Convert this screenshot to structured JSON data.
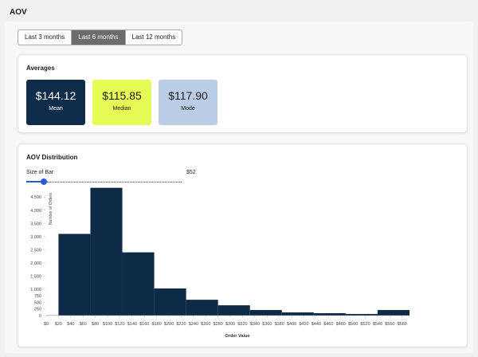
{
  "header": {
    "title": "AOV"
  },
  "tabs": [
    "Last 3 months",
    "Last 6 months",
    "Last 12 months"
  ],
  "active_tab": 1,
  "averages": {
    "title": "Averages",
    "stats": [
      {
        "value": "$144.12",
        "label": "Mean",
        "color": "#0f2d4a",
        "text_color": "#ffffff"
      },
      {
        "value": "$115.85",
        "label": "Median",
        "color": "#e4fc55",
        "text_color": "#1a1a1a"
      },
      {
        "value": "$117.90",
        "label": "Mode",
        "color": "#b9cde6",
        "text_color": "#1a1a1a"
      }
    ]
  },
  "distribution": {
    "title": "AOV Distribution",
    "slider_label": "Size of Bar",
    "slider_value": "$52"
  },
  "chart_data": {
    "type": "histogram",
    "color": "#0d2b47",
    "xlabel": "Order Value",
    "ylabel": "Number of Orders",
    "bins": [
      0,
      20,
      72,
      124,
      176,
      228,
      280,
      332,
      384,
      436,
      488,
      540,
      592
    ],
    "values": [
      10,
      3100,
      4850,
      2400,
      1030,
      600,
      390,
      210,
      120,
      90,
      60,
      210
    ],
    "xlim": [
      0,
      592
    ],
    "ylim": [
      0,
      4900
    ],
    "xticks": [
      {
        "value": 0,
        "label": "$0"
      },
      {
        "value": 20,
        "label": "$20"
      },
      {
        "value": 40,
        "label": "$40"
      },
      {
        "value": 60,
        "label": "$60"
      },
      {
        "value": 80,
        "label": "$80"
      },
      {
        "value": 100,
        "label": "$100"
      },
      {
        "value": 120,
        "label": "$120"
      },
      {
        "value": 140,
        "label": "$140"
      },
      {
        "value": 160,
        "label": "$160"
      },
      {
        "value": 180,
        "label": "$180"
      },
      {
        "value": 200,
        "label": "$200"
      },
      {
        "value": 220,
        "label": "$220"
      },
      {
        "value": 240,
        "label": "$240"
      },
      {
        "value": 260,
        "label": "$260"
      },
      {
        "value": 280,
        "label": "$280"
      },
      {
        "value": 300,
        "label": "$300"
      },
      {
        "value": 320,
        "label": "$320"
      },
      {
        "value": 340,
        "label": "$340"
      },
      {
        "value": 360,
        "label": "$360"
      },
      {
        "value": 380,
        "label": "$380"
      },
      {
        "value": 400,
        "label": "$400"
      },
      {
        "value": 420,
        "label": "$420"
      },
      {
        "value": 440,
        "label": "$440"
      },
      {
        "value": 460,
        "label": "$460"
      },
      {
        "value": 480,
        "label": "$480"
      },
      {
        "value": 500,
        "label": "$500"
      },
      {
        "value": 520,
        "label": "$520"
      },
      {
        "value": 540,
        "label": "$540"
      },
      {
        "value": 560,
        "label": "$560"
      },
      {
        "value": 580,
        "label": "$580"
      }
    ],
    "yticks": [
      0,
      250,
      500,
      750,
      {
        "value": 1000,
        "label": "1,000"
      },
      {
        "value": 1500,
        "label": "1,500"
      },
      {
        "value": 2000,
        "label": "2,000"
      },
      {
        "value": 2500,
        "label": "2,500"
      },
      {
        "value": 3000,
        "label": "3,000"
      },
      {
        "value": 3500,
        "label": "3,500"
      },
      {
        "value": 4000,
        "label": "4,000"
      },
      {
        "value": 4500,
        "label": "4,500"
      }
    ]
  }
}
